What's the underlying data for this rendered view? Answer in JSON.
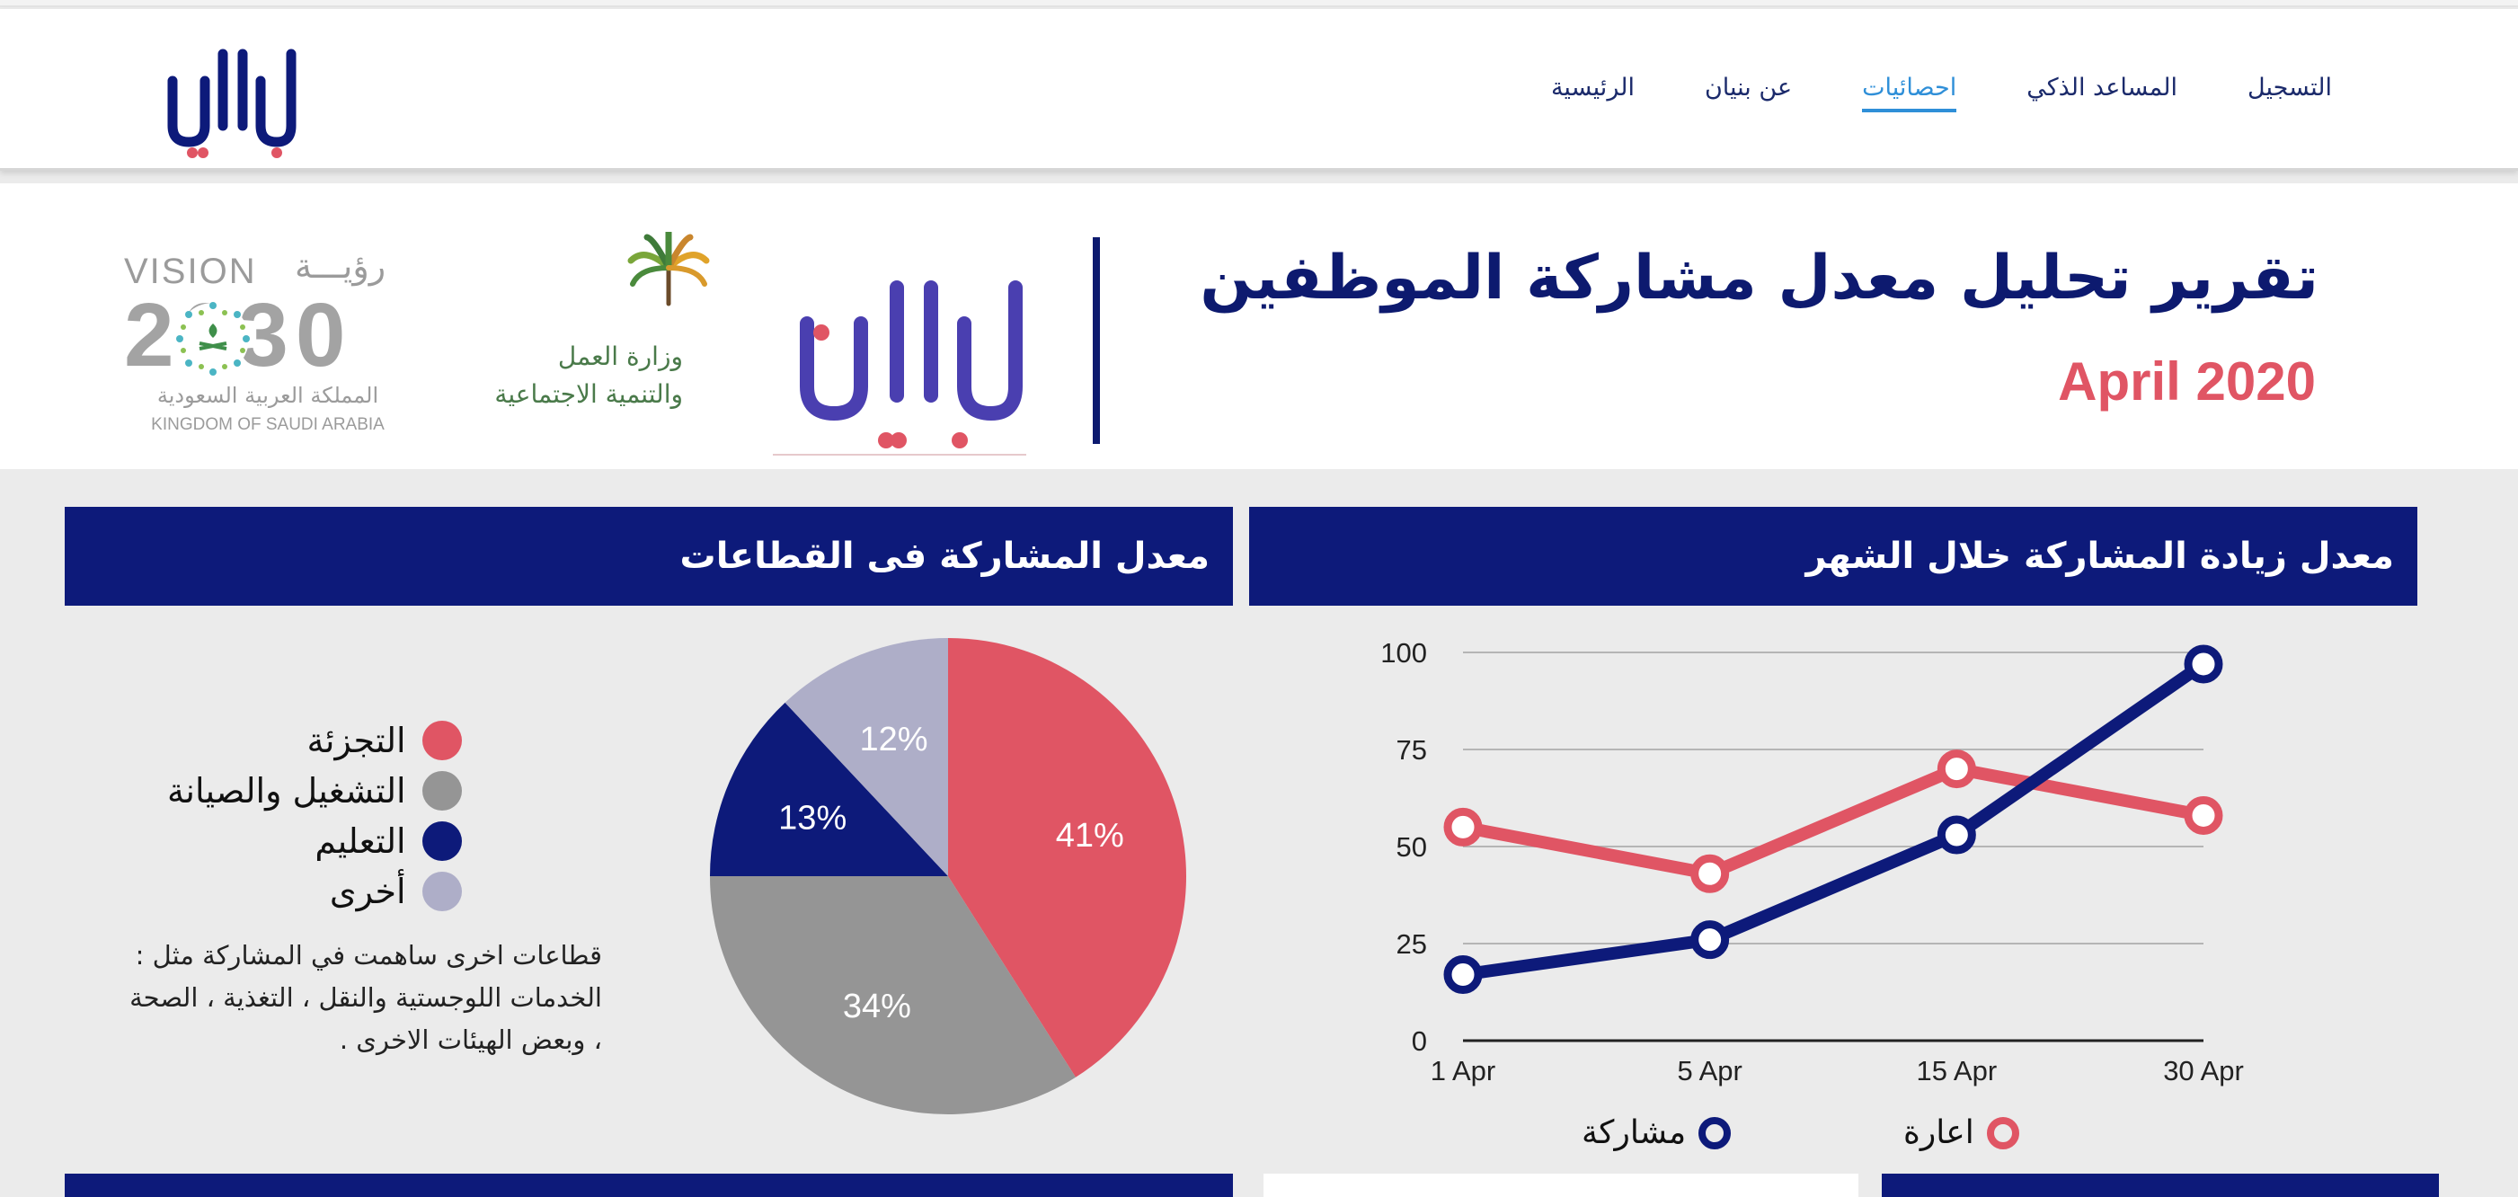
{
  "nav": {
    "items": [
      {
        "label": "الرئيسية",
        "active": false
      },
      {
        "label": "عن بنيان",
        "active": false
      },
      {
        "label": "احصائيات",
        "active": true
      },
      {
        "label": "المساعد الذكي",
        "active": false
      },
      {
        "label": "التسجيل",
        "active": false
      }
    ]
  },
  "banner": {
    "title": "تقرير تحليل معدل مشاركة الموظفين",
    "date": "April 2020",
    "ministry_name_line1": "وزارة العمل",
    "ministry_name_line2": "والتنمية الاجتماعية",
    "vision_word_ar": "رؤيـــة",
    "vision_word_en": "VISION",
    "vision_year": "2030",
    "vision_country_ar": "المملكة العربية السعودية",
    "vision_country_en": "KINGDOM OF SAUDI ARABIA"
  },
  "sectors_panel": {
    "title": "معدل المشاركة فى القطاعات",
    "legend": [
      {
        "label": "التجزئة",
        "color": "#e05564"
      },
      {
        "label": "التشغيل والصيانة",
        "color": "#959595"
      },
      {
        "label": "التعليم",
        "color": "#0d1a7a"
      },
      {
        "label": "أخرى",
        "color": "#aeaec8"
      }
    ],
    "note": "قطاعات اخرى ساهمت في المشاركة مثل : الخدمات اللوجستية والنقل ، التغذية ، الصحة ، وبعض الهيئات الاخرى ."
  },
  "growth_panel": {
    "title": "معدل زيادة المشاركة خلال الشهر",
    "legend": [
      {
        "label": "مشاركة",
        "color": "#0d1a7a"
      },
      {
        "label": "اعارة",
        "color": "#e05564"
      }
    ]
  },
  "chart_data": [
    {
      "type": "pie",
      "labels": [
        "التجزئة",
        "التشغيل والصيانة",
        "التعليم",
        "أخرى"
      ],
      "values": [
        41,
        34,
        13,
        12
      ],
      "data_labels": [
        "41%",
        "34%",
        "13%",
        "12%"
      ],
      "colors": [
        "#e05564",
        "#959595",
        "#0d1a7a",
        "#aeaec8"
      ]
    },
    {
      "type": "line",
      "categories": [
        "1 Apr",
        "5 Apr",
        "15 Apr",
        "30 Apr"
      ],
      "series": [
        {
          "name": "مشاركة",
          "values": [
            17,
            26,
            53,
            97
          ],
          "color": "#0d1a7a"
        },
        {
          "name": "اعارة",
          "values": [
            55,
            43,
            70,
            58
          ],
          "color": "#e05564"
        }
      ],
      "ylim": [
        0,
        100
      ],
      "yticks": [
        0,
        25,
        50,
        75,
        100
      ],
      "grid": true
    }
  ]
}
